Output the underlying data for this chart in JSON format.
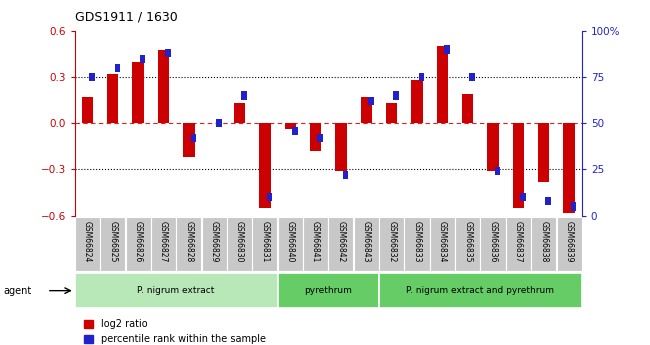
{
  "title": "GDS1911 / 1630",
  "samples": [
    "GSM66824",
    "GSM66825",
    "GSM66826",
    "GSM66827",
    "GSM66828",
    "GSM66829",
    "GSM66830",
    "GSM66831",
    "GSM66840",
    "GSM66841",
    "GSM66842",
    "GSM66843",
    "GSM66832",
    "GSM66833",
    "GSM66834",
    "GSM66835",
    "GSM66836",
    "GSM66837",
    "GSM66838",
    "GSM66839"
  ],
  "log2_ratio": [
    0.17,
    0.32,
    0.4,
    0.48,
    -0.22,
    0.0,
    0.13,
    -0.55,
    -0.04,
    -0.18,
    -0.31,
    0.17,
    0.13,
    0.28,
    0.5,
    0.19,
    -0.31,
    -0.55,
    -0.38,
    -0.58
  ],
  "pct_rank": [
    75,
    80,
    85,
    88,
    42,
    50,
    65,
    10,
    46,
    42,
    22,
    62,
    65,
    75,
    90,
    75,
    24,
    10,
    8,
    5
  ],
  "bar_color_red": "#cc0000",
  "bar_color_blue": "#2222cc",
  "ylim": [
    -0.6,
    0.6
  ],
  "y2lim": [
    0,
    100
  ],
  "yticks": [
    -0.6,
    -0.3,
    0.0,
    0.3,
    0.6
  ],
  "y2ticks_vals": [
    0,
    25,
    50,
    75,
    100
  ],
  "y2ticks_labels": [
    "0",
    "25",
    "50",
    "75",
    "100%"
  ],
  "legend_red": "log2 ratio",
  "legend_blue": "percentile rank within the sample",
  "groups": [
    {
      "label": "P. nigrum extract",
      "start": 0,
      "end": 8
    },
    {
      "label": "pyrethrum",
      "start": 8,
      "end": 12
    },
    {
      "label": "P. nigrum extract and pyrethrum",
      "start": 12,
      "end": 20
    }
  ],
  "group_color_light": "#b8e8b8",
  "group_color_mid": "#66cc66",
  "sample_box_color": "#c8c8c8",
  "fig_width": 6.5,
  "fig_height": 3.45,
  "dpi": 100
}
